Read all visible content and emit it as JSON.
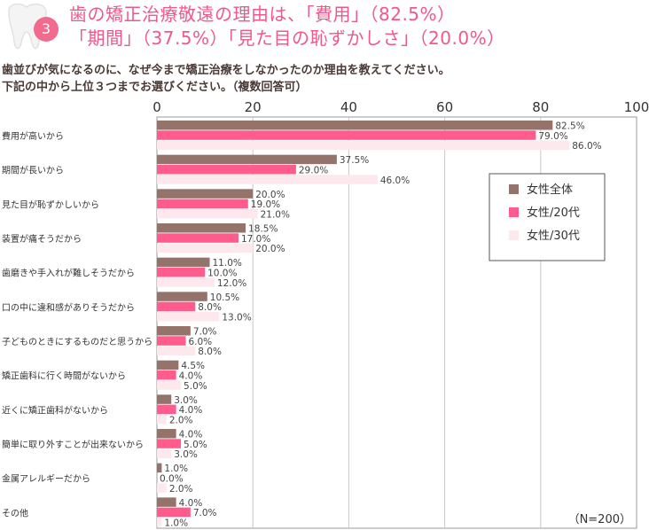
{
  "header": {
    "badge": "3",
    "title_line1": "歯の矯正治療敬遠の理由は、「費用」（82.5%）",
    "title_line2": "「期間」（37.5%）「見た目の恥ずかしさ」（20.0%）"
  },
  "question": {
    "line1": "歯並びが気になるのに、なぜ今まで矯正治療をしなかったのか理由を教えてください。",
    "line2": "下記の中から上位３つまでお選びください。（複数回答可）"
  },
  "colors": {
    "title": "#f0588a",
    "badge": "#f26b8d",
    "series": [
      "#94736b",
      "#ff5c8d",
      "#fde8ee"
    ]
  },
  "chart_data": {
    "type": "bar",
    "orientation": "horizontal",
    "xlim": [
      0,
      100
    ],
    "xticks": [
      "0",
      "20",
      "40",
      "60",
      "80",
      "100"
    ],
    "grid": true,
    "legend_position": "right",
    "note": "（N=200）",
    "categories": [
      "費用が高いから",
      "期間が長いから",
      "見た目が恥ずかしいから",
      "装置が痛そうだから",
      "歯磨きや手入れが難しそうだから",
      "口の中に違和感がありそうだから",
      "子どものときにするものだと思うから",
      "矯正歯科に行く時間がないから",
      "近くに矯正歯科がないから",
      "簡単に取り外すことが出来ないから",
      "金属アレルギーだから",
      "その他"
    ],
    "series": [
      {
        "name": "女性全体",
        "values": [
          82.5,
          37.5,
          20.0,
          18.5,
          11.0,
          10.5,
          7.0,
          4.5,
          3.0,
          4.0,
          1.0,
          4.0
        ],
        "labels": [
          "82.5%",
          "37.5%",
          "20.0%",
          "18.5%",
          "11.0%",
          "10.5%",
          "7.0%",
          "4.5%",
          "3.0%",
          "4.0%",
          "1.0%",
          "4.0%"
        ]
      },
      {
        "name": "女性/20代",
        "values": [
          79.0,
          29.0,
          19.0,
          17.0,
          10.0,
          8.0,
          6.0,
          4.0,
          4.0,
          5.0,
          0.0,
          7.0
        ],
        "labels": [
          "79.0%",
          "29.0%",
          "19.0%",
          "17.0%",
          "10.0%",
          "8.0%",
          "6.0%",
          "4.0%",
          "4.0%",
          "5.0%",
          "0.0%",
          "7.0%"
        ]
      },
      {
        "name": "女性/30代",
        "values": [
          86.0,
          46.0,
          21.0,
          20.0,
          12.0,
          13.0,
          8.0,
          5.0,
          2.0,
          3.0,
          2.0,
          1.0
        ],
        "labels": [
          "86.0%",
          "46.0%",
          "21.0%",
          "20.0%",
          "12.0%",
          "13.0%",
          "8.0%",
          "5.0%",
          "2.0%",
          "3.0%",
          "2.0%",
          "1.0%"
        ]
      }
    ]
  }
}
